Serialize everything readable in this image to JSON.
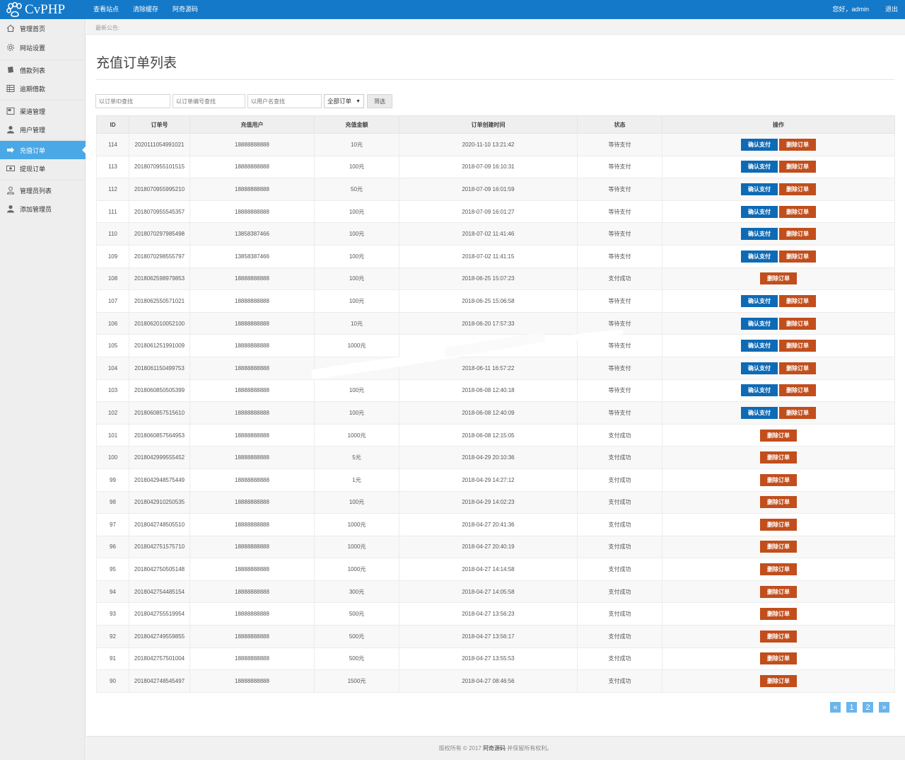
{
  "brand": {
    "name": "CvPHP"
  },
  "topnav": {
    "items": [
      "查看站点",
      "清除缓存",
      "阿奇源码"
    ]
  },
  "user": {
    "greeting": "您好，admin",
    "logout": "退出"
  },
  "sidebar": {
    "items": [
      {
        "label": "管理首页",
        "icon": "home-icon"
      },
      {
        "label": "网站设置",
        "icon": "gear-icon"
      },
      {
        "label": "借款列表",
        "icon": "book-icon"
      },
      {
        "label": "逾期借款",
        "icon": "table-icon"
      },
      {
        "label": "渠道管理",
        "icon": "window-icon"
      },
      {
        "label": "用户管理",
        "icon": "user-icon"
      },
      {
        "label": "充值订单",
        "icon": "recharge-icon",
        "active": true
      },
      {
        "label": "提现订单",
        "icon": "money-icon"
      },
      {
        "label": "管理员列表",
        "icon": "user-outline-icon"
      },
      {
        "label": "添加管理员",
        "icon": "user-add-icon"
      }
    ]
  },
  "notice": {
    "label": "最新公告:"
  },
  "page": {
    "title": "充值订单列表"
  },
  "filters": {
    "id_placeholder": "以订单ID查找",
    "order_no_placeholder": "以订单编号查找",
    "user_placeholder": "以用户名查找",
    "status_selected": "全部订单",
    "submit_label": "筛选"
  },
  "table": {
    "columns": [
      "ID",
      "订单号",
      "充值用户",
      "充值金额",
      "订单创建时间",
      "状态",
      "操作"
    ],
    "confirm_label": "确认支付",
    "delete_label": "删除订单",
    "rows": [
      {
        "id": "114",
        "order_no": "2020111054991021",
        "user": "18888888888",
        "amount": "10元",
        "time": "2020-11-10 13:21:42",
        "status": "等待支付",
        "pending": true
      },
      {
        "id": "113",
        "order_no": "2018070955101515",
        "user": "18888888888",
        "amount": "100元",
        "time": "2018-07-09 16:10:31",
        "status": "等待支付",
        "pending": true
      },
      {
        "id": "112",
        "order_no": "2018070955995210",
        "user": "18888888888",
        "amount": "50元",
        "time": "2018-07-09 16:01:59",
        "status": "等待支付",
        "pending": true
      },
      {
        "id": "111",
        "order_no": "2018070955545357",
        "user": "18888888888",
        "amount": "100元",
        "time": "2018-07-09 16:01:27",
        "status": "等待支付",
        "pending": true
      },
      {
        "id": "110",
        "order_no": "2018070297985498",
        "user": "13858387466",
        "amount": "100元",
        "time": "2018-07-02 11:41:46",
        "status": "等待支付",
        "pending": true
      },
      {
        "id": "109",
        "order_no": "2018070298555797",
        "user": "13858387466",
        "amount": "100元",
        "time": "2018-07-02 11:41:15",
        "status": "等待支付",
        "pending": true
      },
      {
        "id": "108",
        "order_no": "2018062598979853",
        "user": "18888888888",
        "amount": "100元",
        "time": "2018-06-25 15:07:23",
        "status": "支付成功",
        "pending": false
      },
      {
        "id": "107",
        "order_no": "2018062550571021",
        "user": "18888888888",
        "amount": "100元",
        "time": "2018-06-25 15:06:58",
        "status": "等待支付",
        "pending": true
      },
      {
        "id": "106",
        "order_no": "2018062010052100",
        "user": "18888888888",
        "amount": "10元",
        "time": "2018-06-20 17:57:33",
        "status": "等待支付",
        "pending": true
      },
      {
        "id": "105",
        "order_no": "2018061251991009",
        "user": "18888888888",
        "amount": "1000元",
        "time": "",
        "status": "等待支付",
        "pending": true
      },
      {
        "id": "104",
        "order_no": "2018061150499753",
        "user": "18888888888",
        "amount": "",
        "time": "2018-06-11 16:57:22",
        "status": "等待支付",
        "pending": true
      },
      {
        "id": "103",
        "order_no": "2018060850505399",
        "user": "18888888888",
        "amount": "100元",
        "time": "2018-06-08 12:40:18",
        "status": "等待支付",
        "pending": true
      },
      {
        "id": "102",
        "order_no": "2018060857515610",
        "user": "18888888888",
        "amount": "100元",
        "time": "2018-06-08 12:40:09",
        "status": "等待支付",
        "pending": true
      },
      {
        "id": "101",
        "order_no": "2018060857564953",
        "user": "18888888888",
        "amount": "1000元",
        "time": "2018-06-08 12:15:05",
        "status": "支付成功",
        "pending": false
      },
      {
        "id": "100",
        "order_no": "2018042999555452",
        "user": "18888888888",
        "amount": "5元",
        "time": "2018-04-29 20:10:36",
        "status": "支付成功",
        "pending": false
      },
      {
        "id": "99",
        "order_no": "2018042948575449",
        "user": "18888888888",
        "amount": "1元",
        "time": "2018-04-29 14:27:12",
        "status": "支付成功",
        "pending": false
      },
      {
        "id": "98",
        "order_no": "2018042910250535",
        "user": "18888888888",
        "amount": "100元",
        "time": "2018-04-29 14:02:23",
        "status": "支付成功",
        "pending": false
      },
      {
        "id": "97",
        "order_no": "2018042748505510",
        "user": "18888888888",
        "amount": "1000元",
        "time": "2018-04-27 20:41:36",
        "status": "支付成功",
        "pending": false
      },
      {
        "id": "96",
        "order_no": "2018042751575710",
        "user": "18888888888",
        "amount": "1000元",
        "time": "2018-04-27 20:40:19",
        "status": "支付成功",
        "pending": false
      },
      {
        "id": "95",
        "order_no": "2018042750505148",
        "user": "18888888888",
        "amount": "1000元",
        "time": "2018-04-27 14:14:58",
        "status": "支付成功",
        "pending": false
      },
      {
        "id": "94",
        "order_no": "2018042754485154",
        "user": "18888888888",
        "amount": "300元",
        "time": "2018-04-27 14:05:58",
        "status": "支付成功",
        "pending": false
      },
      {
        "id": "93",
        "order_no": "2018042755519954",
        "user": "18888888888",
        "amount": "500元",
        "time": "2018-04-27 13:56:23",
        "status": "支付成功",
        "pending": false
      },
      {
        "id": "92",
        "order_no": "2018042749559855",
        "user": "18888888888",
        "amount": "500元",
        "time": "2018-04-27 13:56:17",
        "status": "支付成功",
        "pending": false
      },
      {
        "id": "91",
        "order_no": "2018042757501004",
        "user": "18888888888",
        "amount": "500元",
        "time": "2018-04-27 13:55:53",
        "status": "支付成功",
        "pending": false
      },
      {
        "id": "90",
        "order_no": "2018042748545497",
        "user": "18888888888",
        "amount": "1500元",
        "time": "2018-04-27 08:46:56",
        "status": "支付成功",
        "pending": false
      }
    ]
  },
  "pagination": {
    "items": [
      "«",
      "1",
      "2",
      "»"
    ]
  },
  "footer": {
    "prefix": "版权所有 © 2017 ",
    "link": "阿奇源码",
    "suffix": " 并保留所有权利。"
  },
  "colors": {
    "topbar": "#1479c9",
    "sidebar_active": "#4ba8e6",
    "confirm": "#0f6ab5",
    "delete": "#c14e1c"
  }
}
